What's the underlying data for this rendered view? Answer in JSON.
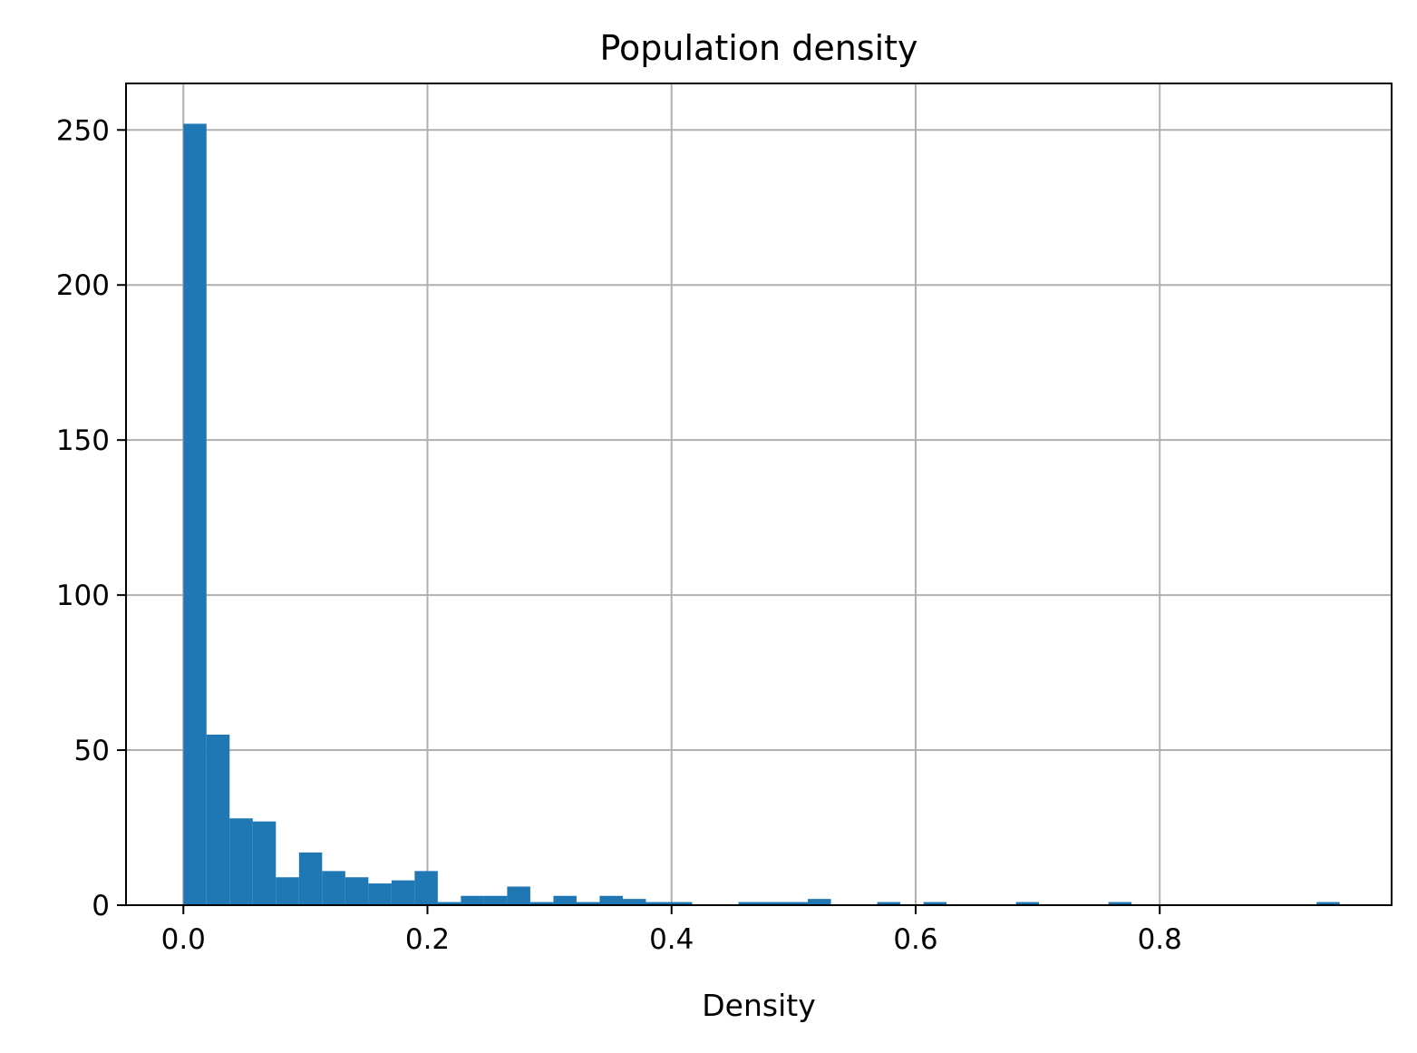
{
  "chart_data": {
    "type": "bar",
    "title": "Population density",
    "xlabel": "Density",
    "ylabel": "",
    "xlim": [
      -0.047,
      0.99
    ],
    "ylim": [
      0,
      265
    ],
    "grid": true,
    "colors": {
      "bar": "#1f77b4",
      "grid": "#b0b0b0",
      "axes": "#000000"
    },
    "x_ticks": [
      {
        "value": 0.0,
        "label": "0.0"
      },
      {
        "value": 0.2,
        "label": "0.2"
      },
      {
        "value": 0.4,
        "label": "0.4"
      },
      {
        "value": 0.6,
        "label": "0.6"
      },
      {
        "value": 0.8,
        "label": "0.8"
      }
    ],
    "y_ticks": [
      {
        "value": 0,
        "label": "0"
      },
      {
        "value": 50,
        "label": "50"
      },
      {
        "value": 100,
        "label": "100"
      },
      {
        "value": 150,
        "label": "150"
      },
      {
        "value": 200,
        "label": "200"
      },
      {
        "value": 250,
        "label": "250"
      }
    ],
    "bin_start": 0.0,
    "bin_width": 0.01895,
    "values": [
      252,
      55,
      28,
      27,
      9,
      17,
      11,
      9,
      7,
      8,
      11,
      1,
      3,
      3,
      6,
      1,
      3,
      1,
      3,
      2,
      1,
      1,
      0,
      0,
      1,
      1,
      1,
      2,
      0,
      0,
      1,
      0,
      1,
      0,
      0,
      0,
      1,
      0,
      0,
      0,
      1,
      0,
      0,
      0,
      0,
      0,
      0,
      0,
      0,
      1
    ]
  }
}
